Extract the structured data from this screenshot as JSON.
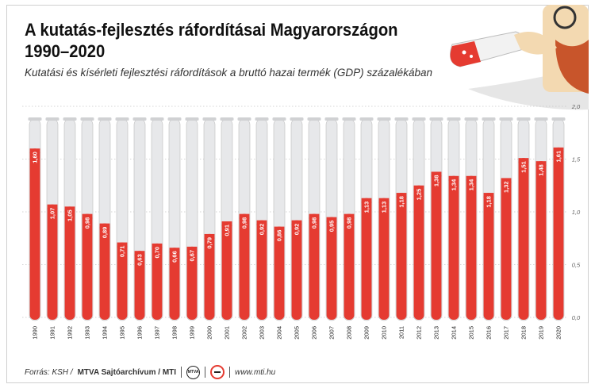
{
  "title_line1": "A kutatás-fejlesztés ráfordításai Magyarországon",
  "title_line2": "1990–2020",
  "subtitle": "Kutatási és kísérleti fejlesztési ráfordítások a bruttó hazai termék (GDP) százalékában",
  "footer": {
    "source_prefix": "Forrás: KSH /",
    "agency": "MTVA Sajtóarchívum / MTI",
    "logo_text": "MTVA",
    "website": "www.mti.hu"
  },
  "colors": {
    "bar": "#e53b31",
    "tube": "#e7e8ea",
    "tube_border": "#bdbdbd",
    "grid": "#c8c8c8",
    "skin": "#f3d9b1",
    "beard": "#c8552b",
    "coat": "#e6e6e6"
  },
  "icons": [
    "scientist-illustration",
    "test-tube-icon",
    "mtva-logo-icon",
    "mti-logo-icon"
  ],
  "chart_data": {
    "type": "bar",
    "title": "A kutatás-fejlesztés ráfordításai Magyarországon 1990–2020",
    "subtitle": "Kutatási és kísérleti fejlesztési ráfordítások a bruttó hazai termék (GDP) százalékában",
    "categories": [
      "1990",
      "1991",
      "1992",
      "1993",
      "1994",
      "1995",
      "1996",
      "1997",
      "1998",
      "1999",
      "2000",
      "2001",
      "2002",
      "2003",
      "2004",
      "2005",
      "2006",
      "2007",
      "2008",
      "2009",
      "2010",
      "2011",
      "2012",
      "2013",
      "2014",
      "2015",
      "2016",
      "2017",
      "2018",
      "2019",
      "2020"
    ],
    "values": [
      1.6,
      1.07,
      1.05,
      0.98,
      0.89,
      0.71,
      0.63,
      0.7,
      0.66,
      0.67,
      0.79,
      0.91,
      0.98,
      0.92,
      0.86,
      0.92,
      0.98,
      0.95,
      0.98,
      1.13,
      1.13,
      1.18,
      1.25,
      1.38,
      1.34,
      1.34,
      1.18,
      1.32,
      1.51,
      1.48,
      1.61
    ],
    "value_labels": [
      "1,60",
      "1,07",
      "1,05",
      "0,98",
      "0,89",
      "0,71",
      "0,63",
      "0,70",
      "0,66",
      "0,67",
      "0,79",
      "0,91",
      "0,98",
      "0,92",
      "0,86",
      "0,92",
      "0,98",
      "0,95",
      "0,98",
      "1,13",
      "1,13",
      "1,18",
      "1,25",
      "1,38",
      "1,34",
      "1,34",
      "1,18",
      "1,32",
      "1,51",
      "1,48",
      "1,61"
    ],
    "ylim": [
      0,
      2.0
    ],
    "yticks": [
      0,
      0.5,
      1.0,
      1.5,
      2.0
    ],
    "ytick_labels": [
      "0,0",
      "0,5",
      "1,0",
      "1,5",
      "2,0"
    ],
    "yaxis_side": "right",
    "grid": true,
    "xlabel": "",
    "ylabel": ""
  }
}
